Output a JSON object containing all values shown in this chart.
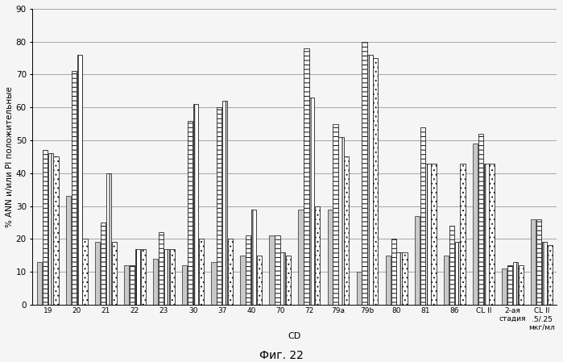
{
  "categories": [
    "19",
    "20",
    "21",
    "22",
    "23",
    "30",
    "37",
    "40",
    "70",
    "72",
    "79a",
    "79b",
    "80",
    "81",
    "86",
    "CL II",
    "2-ая\nстадия",
    "CL II\n.5/.25\nмкг/мл"
  ],
  "series": [
    [
      13,
      33,
      19,
      12,
      14,
      12,
      13,
      15,
      21,
      29,
      29,
      10,
      15,
      27,
      15,
      49,
      11,
      26
    ],
    [
      47,
      71,
      25,
      12,
      22,
      56,
      60,
      21,
      21,
      78,
      55,
      80,
      20,
      54,
      24,
      52,
      12,
      26
    ],
    [
      46,
      76,
      40,
      17,
      17,
      61,
      62,
      29,
      16,
      63,
      51,
      76,
      16,
      43,
      19,
      43,
      13,
      19
    ],
    [
      45,
      20,
      19,
      17,
      17,
      20,
      20,
      15,
      15,
      30,
      45,
      75,
      16,
      43,
      43,
      43,
      12,
      18
    ]
  ],
  "bar_colors": [
    "#c8c8c8",
    "#ffffff",
    "#ffffff",
    "#ffffff"
  ],
  "bar_hatches": [
    "",
    "---",
    "|||",
    "..."
  ],
  "bar_edgecolors": [
    "#444444",
    "#222222",
    "#222222",
    "#222222"
  ],
  "bar_linewidths": [
    0.6,
    0.6,
    0.6,
    0.6
  ],
  "ylabel": "% ANN и/или PI положительные",
  "xlabel": "CD",
  "caption": "Фиг. 22",
  "ylim": [
    0,
    90
  ],
  "yticks": [
    0,
    10,
    20,
    30,
    40,
    50,
    60,
    70,
    80,
    90
  ],
  "figsize": [
    6.99,
    4.49
  ],
  "dpi": 100,
  "bar_width": 0.19,
  "bg_color": "#f5f5f5"
}
